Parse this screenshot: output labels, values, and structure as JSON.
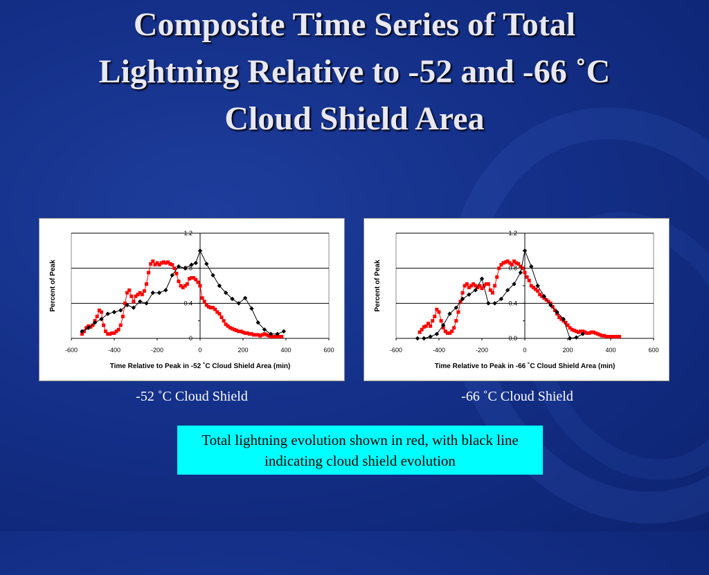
{
  "slide": {
    "title_lines": [
      "Composite Time Series of Total",
      "Lightning Relative to -52 and -66 ˚C",
      "Cloud Shield Area"
    ],
    "caption_left": "-52 ˚C  Cloud Shield",
    "caption_right": "-66 ˚C  Cloud Shield",
    "note": "Total lightning evolution shown in red, with black line indicating cloud shield evolution"
  },
  "chart_data": [
    {
      "type": "scatter",
      "xlabel": "Time Relative to Peak in -52 ˚C Cloud Shield Area (min)",
      "ylabel": "Percent of Peak",
      "xlim": [
        -600,
        600
      ],
      "ylim": [
        0,
        1.2
      ],
      "xticks": [
        "-600",
        "-400",
        "-200",
        "0",
        "200",
        "400",
        "600"
      ],
      "yticks": [
        "0",
        "0.4",
        "0.8",
        "1.2"
      ],
      "grid": "horizontal",
      "series": [
        {
          "color": "#ff0000",
          "marker": "square",
          "line": true,
          "x": [
            -550,
            -540,
            -530,
            -520,
            -510,
            -500,
            -490,
            -480,
            -470,
            -460,
            -450,
            -440,
            -430,
            -420,
            -410,
            -400,
            -390,
            -380,
            -370,
            -360,
            -350,
            -340,
            -330,
            -320,
            -310,
            -300,
            -290,
            -280,
            -270,
            -260,
            -250,
            -240,
            -230,
            -220,
            -210,
            -200,
            -190,
            -180,
            -170,
            -160,
            -150,
            -140,
            -130,
            -120,
            -110,
            -100,
            -90,
            -80,
            -70,
            -60,
            -50,
            -40,
            -30,
            -20,
            -10,
            0,
            10,
            20,
            30,
            40,
            50,
            60,
            70,
            80,
            90,
            100,
            110,
            120,
            130,
            140,
            150,
            160,
            170,
            180,
            190,
            200,
            210,
            220,
            230,
            240,
            250,
            260,
            270,
            280,
            290,
            300,
            310,
            320,
            330,
            340,
            350,
            360,
            370,
            380
          ],
          "y": [
            0.05,
            0.08,
            0.12,
            0.14,
            0.13,
            0.15,
            0.2,
            0.25,
            0.32,
            0.3,
            0.15,
            0.08,
            0.05,
            0.05,
            0.06,
            0.06,
            0.08,
            0.1,
            0.15,
            0.25,
            0.4,
            0.52,
            0.55,
            0.48,
            0.42,
            0.48,
            0.5,
            0.52,
            0.5,
            0.54,
            0.62,
            0.75,
            0.85,
            0.88,
            0.84,
            0.86,
            0.84,
            0.86,
            0.87,
            0.86,
            0.87,
            0.85,
            0.84,
            0.8,
            0.74,
            0.65,
            0.6,
            0.58,
            0.6,
            0.62,
            0.68,
            0.69,
            0.69,
            0.67,
            0.64,
            0.6,
            0.46,
            0.42,
            0.38,
            0.36,
            0.35,
            0.35,
            0.33,
            0.3,
            0.28,
            0.24,
            0.2,
            0.16,
            0.14,
            0.12,
            0.11,
            0.1,
            0.09,
            0.08,
            0.08,
            0.07,
            0.06,
            0.06,
            0.05,
            0.05,
            0.04,
            0.04,
            0.04,
            0.03,
            0.04,
            0.05,
            0.04,
            0.03,
            0.02,
            0.02,
            0.02,
            0.02,
            0.02,
            0.02
          ]
        },
        {
          "color": "#000000",
          "marker": "diamond",
          "line": true,
          "x": [
            -550,
            -520,
            -490,
            -460,
            -430,
            -400,
            -370,
            -340,
            -310,
            -280,
            -250,
            -220,
            -190,
            -160,
            -130,
            -100,
            -70,
            -40,
            -20,
            0,
            30,
            60,
            90,
            120,
            150,
            180,
            210,
            240,
            270,
            300,
            330,
            360,
            390
          ],
          "y": [
            0.08,
            0.12,
            0.18,
            0.22,
            0.28,
            0.3,
            0.32,
            0.38,
            0.35,
            0.42,
            0.4,
            0.52,
            0.52,
            0.55,
            0.72,
            0.82,
            0.8,
            0.84,
            0.86,
            1.0,
            0.85,
            0.72,
            0.6,
            0.52,
            0.45,
            0.4,
            0.46,
            0.34,
            0.18,
            0.1,
            0.05,
            0.05,
            0.08
          ]
        }
      ]
    },
    {
      "type": "scatter",
      "xlabel": "Time Relative to Peak in -66 ˚C Cloud Shield Area (min)",
      "ylabel": "Percent of Peak",
      "xlim": [
        -600,
        600
      ],
      "ylim": [
        0,
        1.2
      ],
      "xticks": [
        "-600",
        "-400",
        "-200",
        "0",
        "200",
        "400",
        "600"
      ],
      "yticks": [
        "0.0",
        "0.4",
        "0.8",
        "1.2"
      ],
      "grid": "horizontal",
      "series": [
        {
          "color": "#ff0000",
          "marker": "square",
          "line": true,
          "x": [
            -490,
            -480,
            -470,
            -460,
            -450,
            -440,
            -430,
            -420,
            -410,
            -400,
            -390,
            -380,
            -370,
            -360,
            -350,
            -340,
            -330,
            -320,
            -310,
            -300,
            -290,
            -280,
            -270,
            -260,
            -250,
            -240,
            -230,
            -220,
            -210,
            -200,
            -190,
            -180,
            -170,
            -160,
            -150,
            -140,
            -130,
            -120,
            -110,
            -100,
            -90,
            -80,
            -70,
            -60,
            -50,
            -40,
            -30,
            -20,
            -10,
            0,
            10,
            20,
            30,
            40,
            50,
            60,
            70,
            80,
            90,
            100,
            110,
            120,
            130,
            140,
            150,
            160,
            170,
            180,
            190,
            200,
            210,
            220,
            230,
            240,
            250,
            260,
            270,
            280,
            290,
            300,
            310,
            320,
            330,
            340,
            350,
            360,
            370,
            380,
            390,
            400,
            410,
            420,
            430,
            440
          ],
          "y": [
            0.07,
            0.1,
            0.13,
            0.14,
            0.17,
            0.14,
            0.2,
            0.25,
            0.33,
            0.3,
            0.2,
            0.12,
            0.08,
            0.06,
            0.06,
            0.08,
            0.12,
            0.2,
            0.3,
            0.42,
            0.52,
            0.6,
            0.62,
            0.58,
            0.6,
            0.62,
            0.6,
            0.58,
            0.6,
            0.57,
            0.6,
            0.62,
            0.62,
            0.55,
            0.52,
            0.6,
            0.7,
            0.8,
            0.84,
            0.86,
            0.87,
            0.88,
            0.86,
            0.84,
            0.88,
            0.86,
            0.85,
            0.82,
            0.8,
            0.75,
            0.7,
            0.66,
            0.6,
            0.58,
            0.56,
            0.54,
            0.5,
            0.48,
            0.46,
            0.44,
            0.42,
            0.4,
            0.36,
            0.32,
            0.28,
            0.24,
            0.22,
            0.2,
            0.18,
            0.15,
            0.12,
            0.1,
            0.09,
            0.08,
            0.07,
            0.08,
            0.08,
            0.07,
            0.06,
            0.06,
            0.07,
            0.07,
            0.06,
            0.05,
            0.04,
            0.03,
            0.03,
            0.02,
            0.02,
            0.02,
            0.02,
            0.02,
            0.02,
            0.02
          ]
        },
        {
          "color": "#000000",
          "marker": "diamond",
          "line": true,
          "x": [
            -500,
            -470,
            -440,
            -410,
            -380,
            -350,
            -320,
            -290,
            -260,
            -230,
            -200,
            -170,
            -140,
            -110,
            -80,
            -50,
            -20,
            0,
            30,
            60,
            90,
            120,
            150,
            180,
            210,
            240,
            270
          ],
          "y": [
            0.0,
            0.0,
            0.02,
            0.05,
            0.15,
            0.28,
            0.35,
            0.45,
            0.5,
            0.55,
            0.68,
            0.4,
            0.4,
            0.45,
            0.55,
            0.62,
            0.75,
            1.0,
            0.82,
            0.6,
            0.48,
            0.38,
            0.3,
            0.22,
            0.0,
            0.01,
            0.05
          ]
        }
      ]
    }
  ]
}
